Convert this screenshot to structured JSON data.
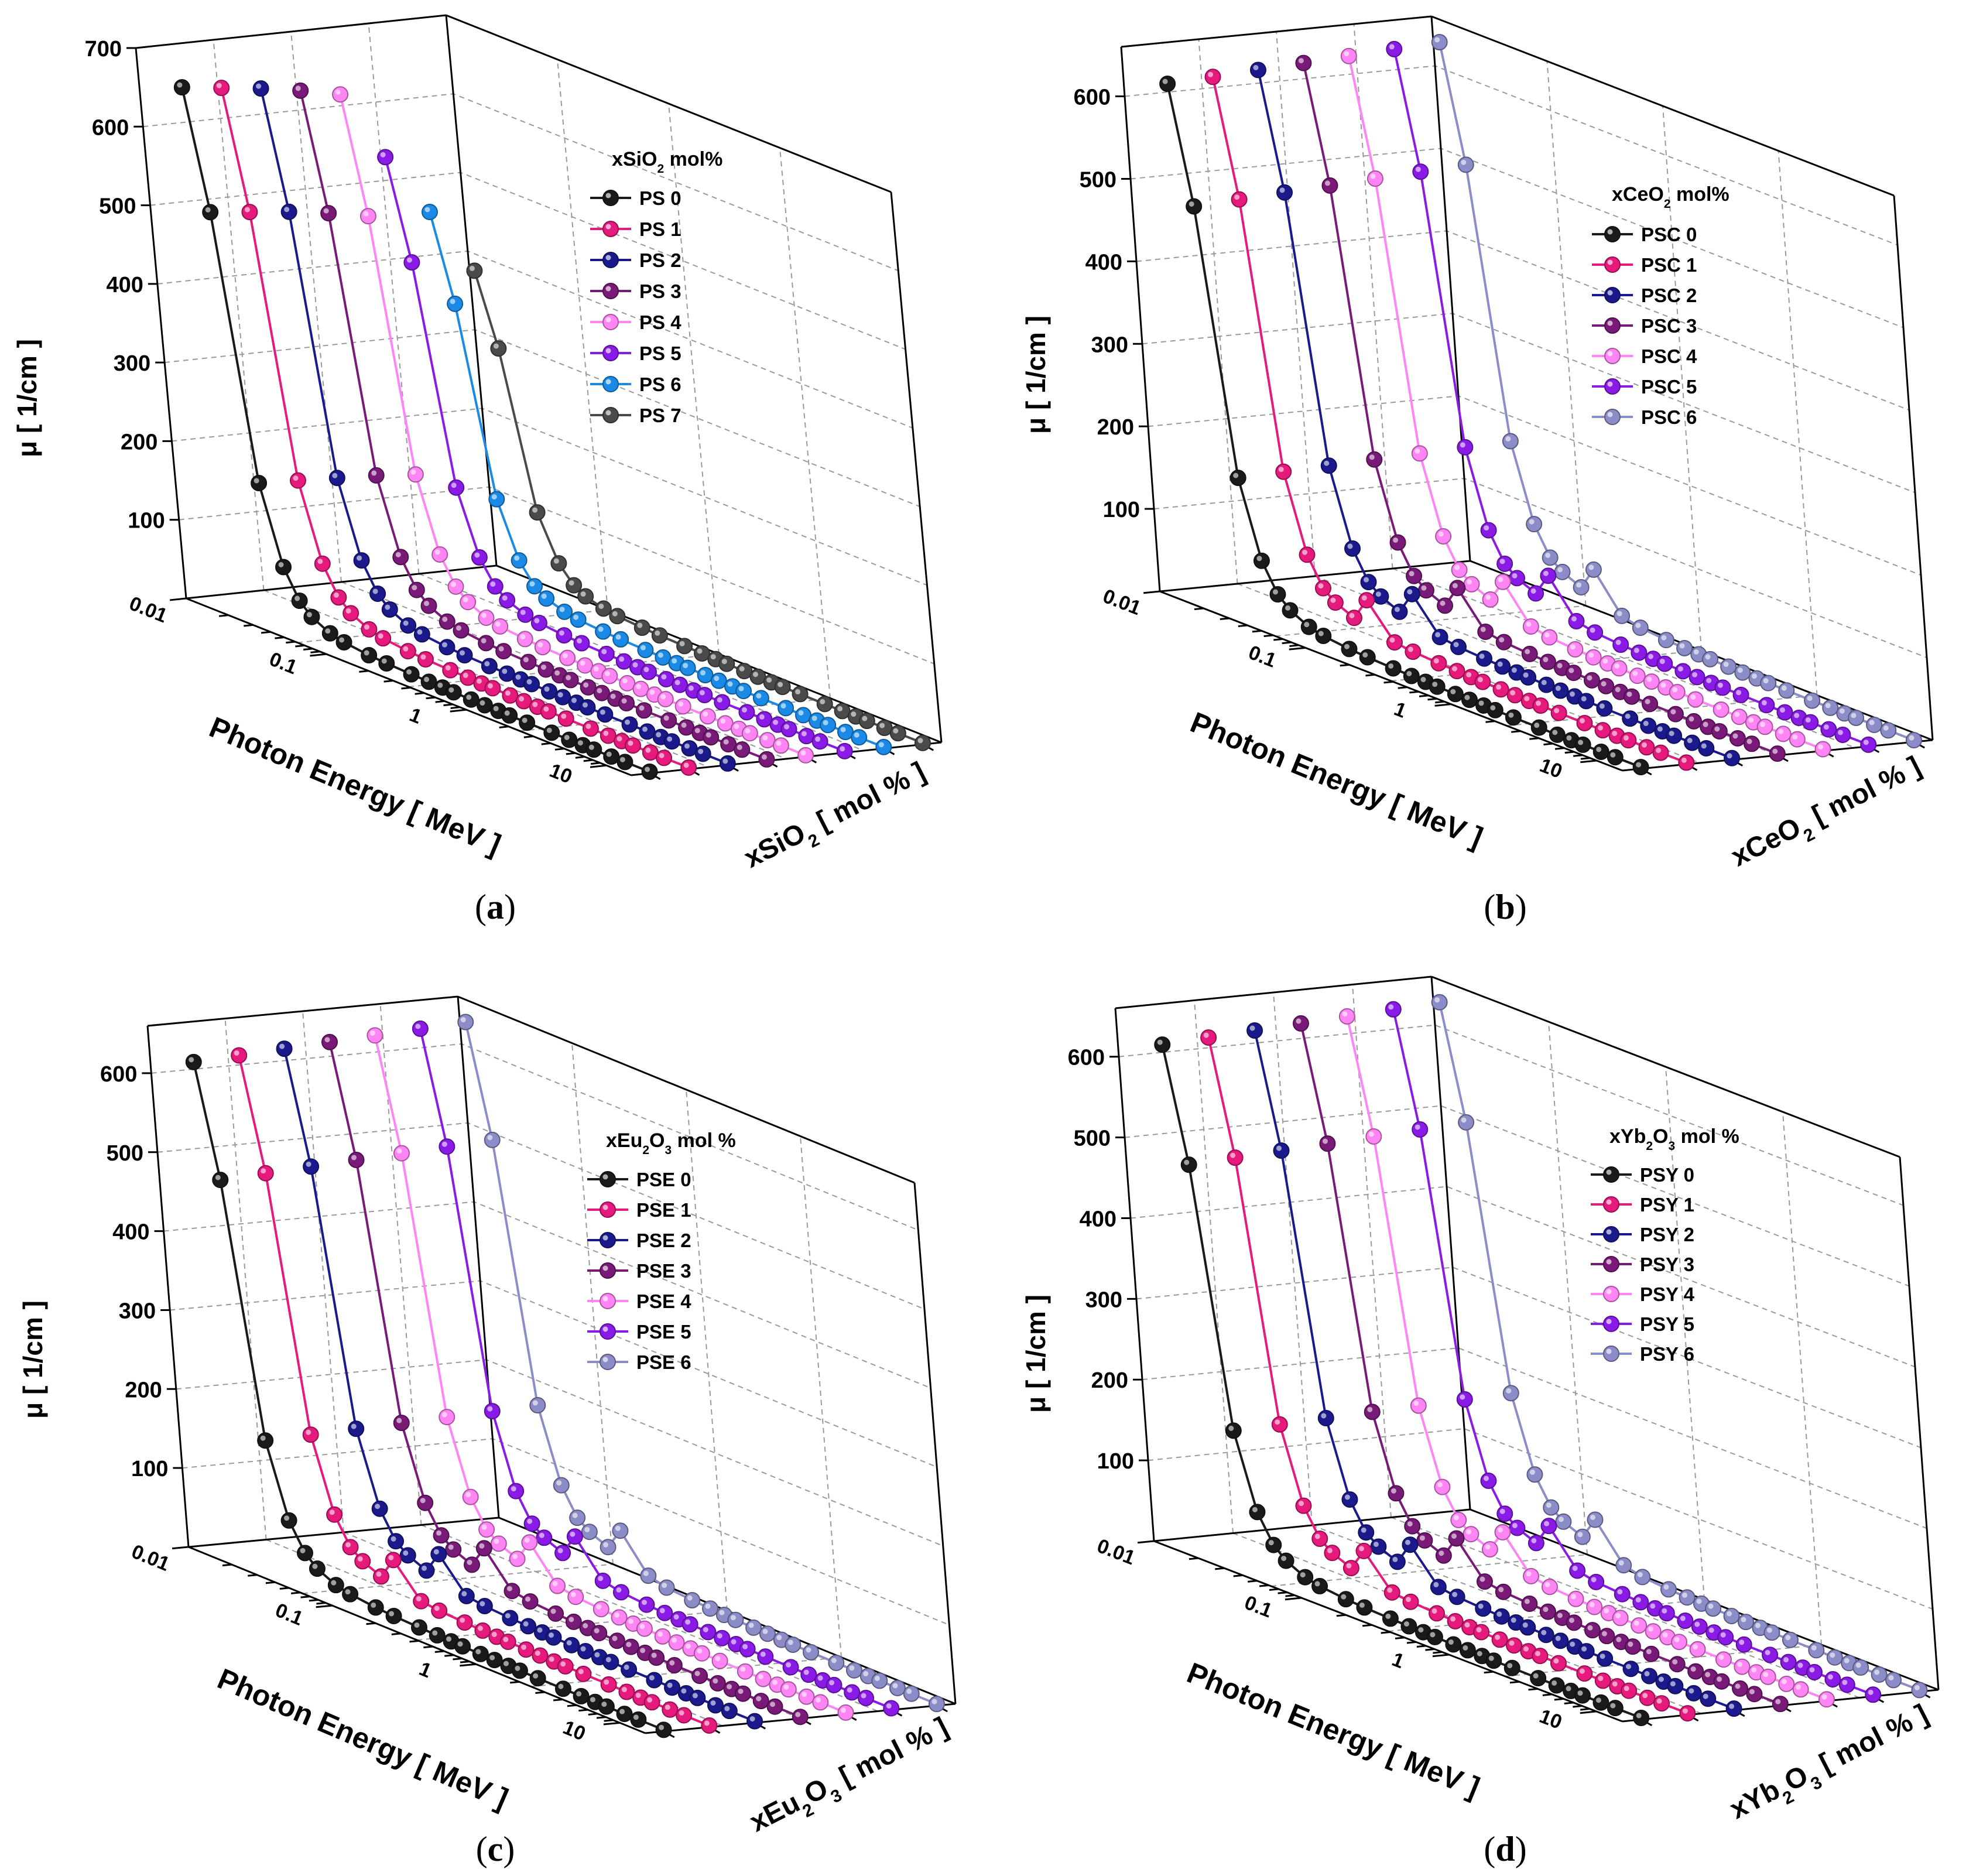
{
  "figure": {
    "energies_MeV": [
      0.015,
      0.02,
      0.03,
      0.04,
      0.05,
      0.06,
      0.08,
      0.1,
      0.15,
      0.2,
      0.3,
      0.4,
      0.5,
      0.6,
      0.8,
      1,
      1.25,
      1.5,
      2,
      3,
      4,
      5,
      6,
      8,
      10,
      15
    ]
  },
  "chart_data": [
    {
      "type": "line",
      "subtype": "3d-waterfall",
      "caption": "a",
      "title": "",
      "xlabel": "Photon Energy [ MeV ]",
      "ylabel": "μ [ 1/cm ]",
      "zlabel": "xSiO2 [ mol % ]",
      "zlabel_parts": {
        "pre": "xSiO",
        "sub": "2",
        "post": " [ mol % ]"
      },
      "xscale": "log",
      "xlim": [
        0.01,
        15
      ],
      "x_ticks": [
        "0.01",
        "0.1",
        "1",
        "10"
      ],
      "ylim": [
        0,
        700
      ],
      "y_ticks": [
        100,
        200,
        300,
        400,
        500,
        600,
        700
      ],
      "legend_title": {
        "pre": "xSiO",
        "sub": "2",
        "post": " mol%"
      },
      "legend_position": "top-right",
      "series": [
        {
          "name": "PS 0",
          "color": "#1a1a1a",
          "values": [
            660,
            510,
            178,
            80,
            44,
            29,
            17,
            12.5,
            8.5,
            7.0,
            5.6,
            4.9,
            4.4,
            4.0,
            3.6,
            3.2,
            2.9,
            2.7,
            2.4,
            2.1,
            1.95,
            1.9,
            1.88,
            1.88,
            1.9,
            2.0
          ]
        },
        {
          "name": "PS 1",
          "color": "#e6197d",
          "values": [
            654,
            505,
            176,
            79,
            43,
            28.5,
            16.8,
            12.3,
            8.4,
            6.9,
            5.55,
            4.85,
            4.35,
            3.95,
            3.55,
            3.15,
            2.85,
            2.65,
            2.35,
            2.05,
            1.92,
            1.87,
            1.86,
            1.86,
            1.88,
            1.98
          ]
        },
        {
          "name": "PS 2",
          "color": "#1a1a8c",
          "values": [
            648,
            500,
            174,
            78,
            42.5,
            28,
            16.5,
            12.1,
            8.3,
            6.85,
            5.5,
            4.8,
            4.3,
            3.9,
            3.5,
            3.1,
            2.8,
            2.6,
            2.3,
            2.02,
            1.9,
            1.85,
            1.84,
            1.84,
            1.86,
            1.96
          ]
        },
        {
          "name": "PS 3",
          "color": "#7a1a78",
          "values": [
            640,
            493,
            172,
            77,
            42,
            27.5,
            16.2,
            11.9,
            8.2,
            6.8,
            5.45,
            4.75,
            4.25,
            3.85,
            3.45,
            3.05,
            2.75,
            2.55,
            2.25,
            1.99,
            1.88,
            1.83,
            1.82,
            1.82,
            1.84,
            1.94
          ]
        },
        {
          "name": "PS 4",
          "color": "#ff85f5",
          "values": [
            630,
            484,
            168,
            75,
            41,
            27,
            15.9,
            11.7,
            8.1,
            6.7,
            5.4,
            4.7,
            4.2,
            3.8,
            3.4,
            3.0,
            2.7,
            2.5,
            2.2,
            1.96,
            1.85,
            1.8,
            1.8,
            1.8,
            1.82,
            1.92
          ]
        },
        {
          "name": "PS 5",
          "color": "#8a1ae6",
          "values": [
            545,
            420,
            146,
            66,
            36,
            24,
            14.5,
            10.8,
            7.6,
            6.4,
            5.2,
            4.55,
            4.1,
            3.7,
            3.3,
            2.95,
            2.65,
            2.45,
            2.15,
            1.93,
            1.82,
            1.78,
            1.78,
            1.78,
            1.8,
            1.9
          ]
        },
        {
          "name": "PS 6",
          "color": "#1a8ae6",
          "values": [
            470,
            362,
            126,
            57,
            31,
            21,
            13,
            9.9,
            7.2,
            6.1,
            5.0,
            4.4,
            3.95,
            3.6,
            3.2,
            2.9,
            2.6,
            2.4,
            2.1,
            1.9,
            1.8,
            1.76,
            1.76,
            1.76,
            1.78,
            1.88
          ]
        },
        {
          "name": "PS 7",
          "color": "#4a4a4a",
          "values": [
            390,
            300,
            104,
            48,
            27,
            18.5,
            11.8,
            9.1,
            6.8,
            5.8,
            4.8,
            4.25,
            3.85,
            3.5,
            3.1,
            2.8,
            2.55,
            2.35,
            2.05,
            1.87,
            1.77,
            1.74,
            1.74,
            1.74,
            1.76,
            1.86
          ]
        }
      ]
    },
    {
      "type": "line",
      "subtype": "3d-waterfall",
      "caption": "b",
      "title": "",
      "xlabel": "Photon Energy [ MeV ]",
      "ylabel": "μ [ 1/cm ]",
      "zlabel": "xCeO2 [ mol % ]",
      "zlabel_parts": {
        "pre": "xCeO",
        "sub": "2",
        "post": " [ mol % ]"
      },
      "xscale": "log",
      "xlim": [
        0.01,
        15
      ],
      "x_ticks": [
        "0.01",
        "0.1",
        "1",
        "10"
      ],
      "ylim": [
        0,
        660
      ],
      "y_ticks": [
        100,
        200,
        300,
        400,
        500,
        600
      ],
      "legend_title": {
        "pre": "xCeO",
        "sub": "2",
        "post": " mol%"
      },
      "legend_position": "top-right",
      "series": [
        {
          "name": "PSC 0",
          "color": "#1a1a1a",
          "values": [
            625,
            485,
            168,
            76,
            42,
            28,
            16.5,
            12.2,
            8.4,
            6.9,
            5.5,
            4.8,
            4.3,
            3.9,
            3.5,
            3.1,
            2.8,
            2.6,
            2.3,
            2.05,
            1.92,
            1.87,
            1.86,
            1.86,
            1.88,
            1.98
          ]
        },
        {
          "name": "PSC 1",
          "color": "#e6197d",
          "values": [
            628,
            488,
            170,
            78,
            44,
            32,
            22,
            50,
            11,
            8.2,
            6.3,
            5.3,
            4.7,
            4.2,
            3.7,
            3.3,
            2.95,
            2.72,
            2.4,
            2.1,
            1.96,
            1.9,
            1.88,
            1.88,
            1.9,
            2.0
          ]
        },
        {
          "name": "PSC 2",
          "color": "#1a1a8c",
          "values": [
            631,
            491,
            172,
            80,
            46,
            34,
            24,
            52,
            12,
            8.6,
            6.5,
            5.45,
            4.8,
            4.3,
            3.8,
            3.38,
            3.0,
            2.76,
            2.44,
            2.13,
            1.98,
            1.92,
            1.9,
            1.9,
            1.92,
            2.02
          ]
        },
        {
          "name": "PSC 3",
          "color": "#7a1a78",
          "values": [
            634,
            494,
            174,
            82,
            48,
            36,
            26,
            54,
            13,
            9.0,
            6.7,
            5.6,
            4.9,
            4.4,
            3.9,
            3.46,
            3.05,
            2.8,
            2.48,
            2.16,
            2.0,
            1.94,
            1.92,
            1.92,
            1.94,
            2.04
          ]
        },
        {
          "name": "PSC 4",
          "color": "#ff85f5",
          "values": [
            637,
            497,
            176,
            84,
            50,
            38,
            28,
            56,
            14,
            9.4,
            6.9,
            5.75,
            5.0,
            4.5,
            4.0,
            3.54,
            3.1,
            2.84,
            2.52,
            2.19,
            2.02,
            1.96,
            1.94,
            1.94,
            1.96,
            2.06
          ]
        },
        {
          "name": "PSC 5",
          "color": "#8a1ae6",
          "values": [
            640,
            500,
            178,
            86,
            52,
            40,
            30,
            58,
            15,
            9.8,
            7.1,
            5.9,
            5.1,
            4.6,
            4.1,
            3.62,
            3.15,
            2.88,
            2.56,
            2.22,
            2.04,
            1.98,
            1.96,
            1.96,
            1.98,
            2.08
          ]
        },
        {
          "name": "PSC 6",
          "color": "#8c8cc8",
          "values": [
            643,
            503,
            180,
            88,
            54,
            42,
            32,
            60,
            16,
            10.2,
            7.3,
            6.05,
            5.2,
            4.7,
            4.2,
            3.7,
            3.2,
            2.92,
            2.6,
            2.25,
            2.06,
            2.0,
            1.98,
            1.98,
            2.0,
            2.1
          ]
        }
      ]
    },
    {
      "type": "line",
      "subtype": "3d-waterfall",
      "caption": "c",
      "title": "",
      "xlabel": "Photon Energy [ MeV ]",
      "ylabel": "μ [ 1/cm ]",
      "zlabel": "xEu2O3 [ mol % ]",
      "zlabel_parts": {
        "pre": "xEu",
        "sub": "2",
        "mid": "O",
        "sub2": "3",
        "post": " [ mol % ]"
      },
      "xscale": "log",
      "xlim": [
        0.01,
        15
      ],
      "x_ticks": [
        "0.01",
        "0.1",
        "1",
        "10"
      ],
      "ylim": [
        0,
        660
      ],
      "y_ticks": [
        100,
        200,
        300,
        400,
        500,
        600
      ],
      "legend_title": {
        "pre": "xEu",
        "sub": "2",
        "mid": "O",
        "sub2": "3",
        "post": " mol %"
      },
      "legend_position": "top-right",
      "series": [
        {
          "name": "PSE 0",
          "color": "#1a1a1a",
          "values": [
            625,
            485,
            168,
            76,
            42,
            28,
            16.5,
            12.2,
            8.4,
            6.9,
            5.5,
            4.8,
            4.3,
            3.9,
            3.5,
            3.1,
            2.8,
            2.6,
            2.3,
            2.05,
            1.92,
            1.87,
            1.86,
            1.86,
            1.88,
            1.98
          ]
        },
        {
          "name": "PSE 1",
          "color": "#e6197d",
          "values": [
            628,
            488,
            170,
            78,
            44,
            32,
            22,
            50,
            11,
            8.2,
            6.3,
            5.3,
            4.7,
            4.2,
            3.7,
            3.3,
            2.95,
            2.72,
            2.4,
            2.1,
            1.96,
            1.9,
            1.88,
            1.88,
            1.9,
            2.0
          ]
        },
        {
          "name": "PSE 2",
          "color": "#1a1a8c",
          "values": [
            631,
            491,
            172,
            80,
            46,
            34,
            24,
            52,
            12,
            8.6,
            6.5,
            5.45,
            4.8,
            4.3,
            3.8,
            3.38,
            3.0,
            2.76,
            2.44,
            2.13,
            1.98,
            1.92,
            1.9,
            1.9,
            1.92,
            2.02
          ]
        },
        {
          "name": "PSE 3",
          "color": "#7a1a78",
          "values": [
            634,
            494,
            174,
            82,
            48,
            36,
            26,
            54,
            13,
            9.0,
            6.7,
            5.6,
            4.9,
            4.4,
            3.9,
            3.46,
            3.05,
            2.8,
            2.48,
            2.16,
            2.0,
            1.94,
            1.92,
            1.92,
            1.94,
            2.04
          ]
        },
        {
          "name": "PSE 4",
          "color": "#ff85f5",
          "values": [
            637,
            497,
            176,
            84,
            50,
            38,
            28,
            56,
            14,
            9.4,
            6.9,
            5.75,
            5.0,
            4.5,
            4.0,
            3.54,
            3.1,
            2.84,
            2.52,
            2.19,
            2.02,
            1.96,
            1.94,
            1.94,
            1.96,
            2.06
          ]
        },
        {
          "name": "PSE 5",
          "color": "#8a1ae6",
          "values": [
            640,
            500,
            178,
            86,
            52,
            40,
            30,
            58,
            15,
            9.8,
            7.1,
            5.9,
            5.1,
            4.6,
            4.1,
            3.62,
            3.15,
            2.88,
            2.56,
            2.22,
            2.04,
            1.98,
            1.96,
            1.96,
            1.98,
            2.08
          ]
        },
        {
          "name": "PSE 6",
          "color": "#8c8cc8",
          "values": [
            643,
            503,
            180,
            88,
            54,
            42,
            32,
            60,
            16,
            10.2,
            7.3,
            6.05,
            5.2,
            4.7,
            4.2,
            3.7,
            3.2,
            2.92,
            2.6,
            2.25,
            2.06,
            2.0,
            1.98,
            1.98,
            2.0,
            2.1
          ]
        }
      ]
    },
    {
      "type": "line",
      "subtype": "3d-waterfall",
      "caption": "d",
      "title": "",
      "xlabel": "Photon Energy [ MeV ]",
      "ylabel": "μ [ 1/cm ]",
      "zlabel": "xYb2O3 [ mol % ]",
      "zlabel_parts": {
        "pre": "xYb",
        "sub": "2",
        "mid": "O",
        "sub2": "3",
        "post": " [ mol % ]"
      },
      "xscale": "log",
      "xlim": [
        0.01,
        15
      ],
      "x_ticks": [
        "0.01",
        "0.1",
        "1",
        "10"
      ],
      "ylim": [
        0,
        660
      ],
      "y_ticks": [
        100,
        200,
        300,
        400,
        500,
        600
      ],
      "legend_title": {
        "pre": "xYb",
        "sub": "2",
        "mid": "O",
        "sub2": "3",
        "post": " mol %"
      },
      "legend_position": "top-right",
      "series": [
        {
          "name": "PSY 0",
          "color": "#1a1a1a",
          "values": [
            625,
            485,
            168,
            76,
            42,
            28,
            16.5,
            12.2,
            8.4,
            6.9,
            5.5,
            4.8,
            4.3,
            3.9,
            3.5,
            3.1,
            2.8,
            2.6,
            2.3,
            2.05,
            1.92,
            1.87,
            1.86,
            1.86,
            1.88,
            1.98
          ]
        },
        {
          "name": "PSY 1",
          "color": "#e6197d",
          "values": [
            628,
            488,
            170,
            78,
            44,
            32,
            22,
            50,
            11,
            8.2,
            6.3,
            5.3,
            4.7,
            4.2,
            3.7,
            3.3,
            2.95,
            2.72,
            2.4,
            2.1,
            1.96,
            1.9,
            1.88,
            1.88,
            1.9,
            2.0
          ]
        },
        {
          "name": "PSY 2",
          "color": "#1a1a8c",
          "values": [
            631,
            491,
            172,
            80,
            46,
            34,
            24,
            52,
            12,
            8.6,
            6.5,
            5.45,
            4.8,
            4.3,
            3.8,
            3.38,
            3.0,
            2.76,
            2.44,
            2.13,
            1.98,
            1.92,
            1.9,
            1.9,
            1.92,
            2.02
          ]
        },
        {
          "name": "PSY 3",
          "color": "#7a1a78",
          "values": [
            634,
            494,
            174,
            82,
            48,
            36,
            26,
            54,
            13,
            9.0,
            6.7,
            5.6,
            4.9,
            4.4,
            3.9,
            3.46,
            3.05,
            2.8,
            2.48,
            2.16,
            2.0,
            1.94,
            1.92,
            1.92,
            1.94,
            2.04
          ]
        },
        {
          "name": "PSY 4",
          "color": "#ff85f5",
          "values": [
            637,
            497,
            176,
            84,
            50,
            38,
            28,
            56,
            14,
            9.4,
            6.9,
            5.75,
            5.0,
            4.5,
            4.0,
            3.54,
            3.1,
            2.84,
            2.52,
            2.19,
            2.02,
            1.96,
            1.94,
            1.94,
            1.96,
            2.06
          ]
        },
        {
          "name": "PSY 5",
          "color": "#8a1ae6",
          "values": [
            640,
            500,
            178,
            86,
            52,
            40,
            30,
            58,
            15,
            9.8,
            7.1,
            5.9,
            5.1,
            4.6,
            4.1,
            3.62,
            3.15,
            2.88,
            2.56,
            2.22,
            2.04,
            1.98,
            1.96,
            1.96,
            1.98,
            2.08
          ]
        },
        {
          "name": "PSY 6",
          "color": "#8c8cc8",
          "values": [
            643,
            503,
            180,
            88,
            54,
            42,
            32,
            60,
            16,
            10.2,
            7.3,
            6.05,
            5.2,
            4.7,
            4.2,
            3.7,
            3.2,
            2.92,
            2.6,
            2.25,
            2.06,
            2.0,
            1.98,
            1.98,
            2.0,
            2.1
          ]
        }
      ]
    }
  ]
}
